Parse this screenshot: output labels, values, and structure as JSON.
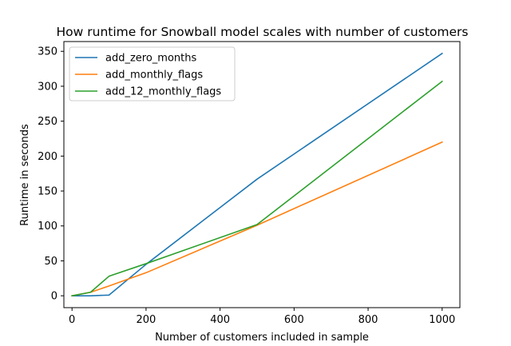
{
  "chart_data": {
    "type": "line",
    "title": "How runtime for Snowball model scales with number of customers",
    "xlabel": "Number of customers included in sample",
    "ylabel": "Runtime in seconds",
    "xlim": [
      -22,
      1048
    ],
    "ylim": [
      -17,
      364
    ],
    "xticks": [
      0,
      200,
      400,
      600,
      800,
      1000
    ],
    "yticks": [
      0,
      50,
      100,
      150,
      200,
      250,
      300,
      350
    ],
    "grid": false,
    "legend_position": "upper-left",
    "series": [
      {
        "name": "add_zero_months",
        "color": "#1f77b4",
        "x": [
          0,
          50,
          100,
          200,
          500,
          1000
        ],
        "y": [
          0,
          0,
          1,
          45,
          167,
          347
        ]
      },
      {
        "name": "add_monthly_flags",
        "color": "#ff7f0e",
        "x": [
          0,
          50,
          100,
          200,
          500,
          1000
        ],
        "y": [
          0,
          5,
          14,
          33,
          101,
          220
        ]
      },
      {
        "name": "add_12_monthly_flags",
        "color": "#2ca02c",
        "x": [
          0,
          50,
          100,
          200,
          500,
          1000
        ],
        "y": [
          0,
          5,
          28,
          46,
          102,
          307
        ]
      }
    ]
  }
}
